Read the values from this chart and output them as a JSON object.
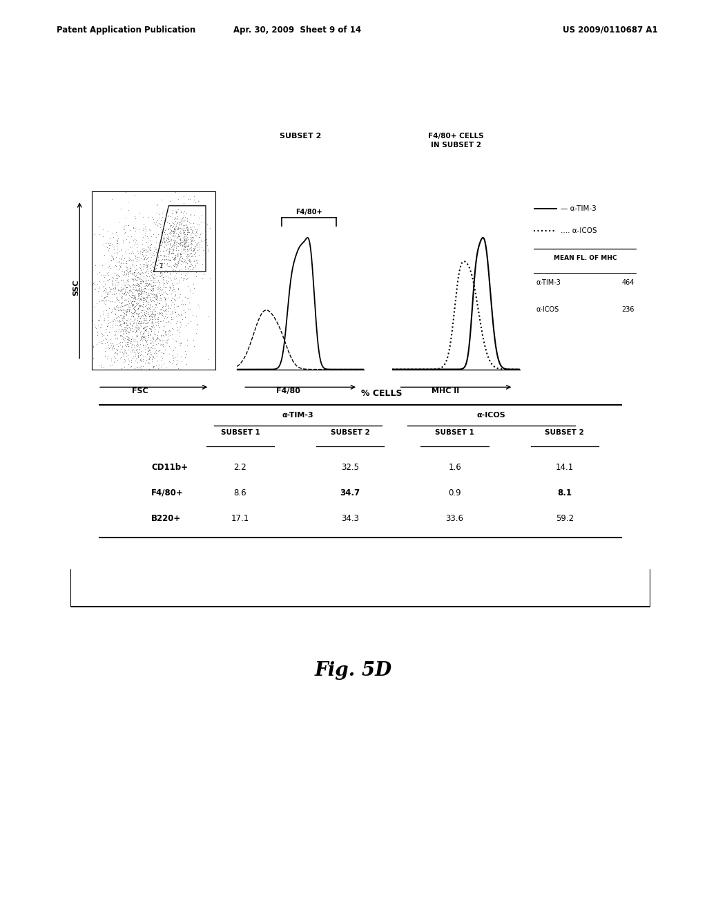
{
  "header_left": "Patent Application Publication",
  "header_mid": "Apr. 30, 2009  Sheet 9 of 14",
  "header_right": "US 2009/0110687 A1",
  "fig_label": "Fig. 5D",
  "scatter_xlabel": "FSC",
  "scatter_ylabel": "SSC",
  "hist1_title": "SUBSET 2",
  "hist1_xlabel": "F4/80",
  "hist1_bracket_label": "F4/80+",
  "hist2_title": "F4/80+ CELLS\nIN SUBSET 2",
  "hist2_xlabel": "MHC II",
  "mean_fl_title": "MEAN FL. OF MHC",
  "mean_fl_tim3_label": "α-TIM-3",
  "mean_fl_tim3_val": "464",
  "mean_fl_icos_label": "α-ICOS",
  "mean_fl_icos_val": "236",
  "table_title": "% CELLS",
  "table_col_groups": [
    "α-TIM-3",
    "α-ICOS"
  ],
  "table_col_headers": [
    "SUBSET 1",
    "SUBSET 2",
    "SUBSET 1",
    "SUBSET 2"
  ],
  "table_row_labels": [
    "CD11b+",
    "F4/80+",
    "B220+"
  ],
  "table_data": [
    [
      "2.2",
      "32.5",
      "1.6",
      "14.1"
    ],
    [
      "8.6",
      "34.7",
      "0.9",
      "8.1"
    ],
    [
      "17.1",
      "34.3",
      "33.6",
      "59.2"
    ]
  ],
  "table_bold_cols": [
    1,
    3
  ],
  "table_bold_rows": [
    1
  ],
  "bg_color": "#ffffff",
  "text_color": "#000000"
}
